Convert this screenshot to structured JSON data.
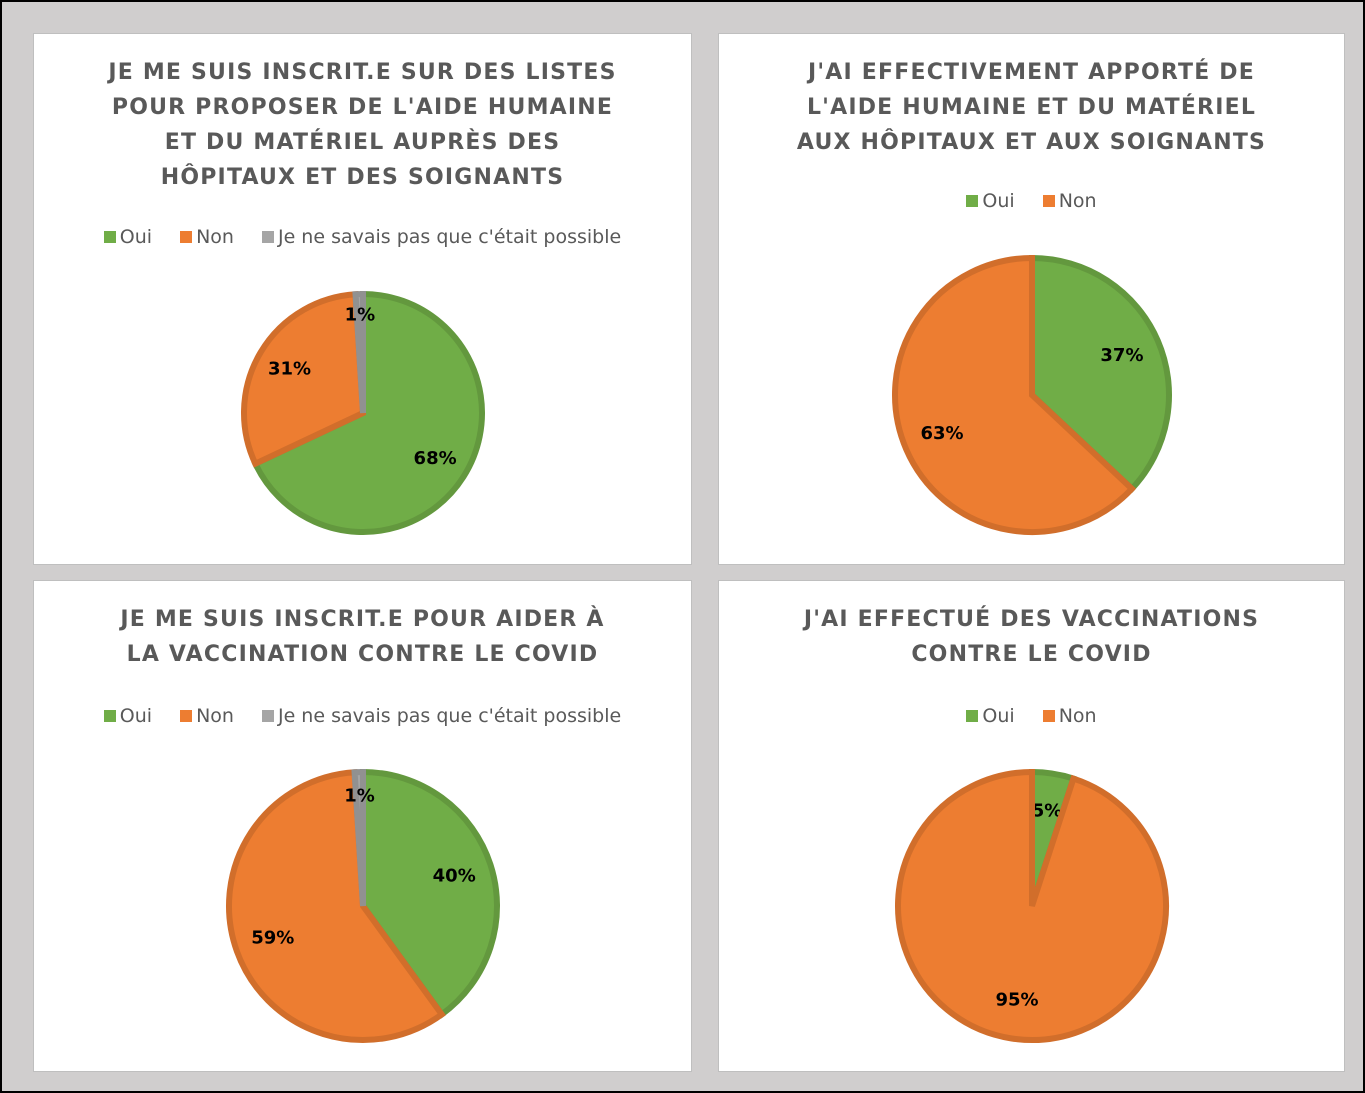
{
  "chart_data": [
    {
      "type": "pie",
      "title": [
        "JE ME SUIS INSCRIT.E SUR DES LISTES",
        "POUR PROPOSER DE L'AIDE HUMAINE",
        "ET DU MATÉRIEL AUPRÈS DES",
        "HÔPITAUX ET DES SOIGNANTS"
      ],
      "categories": [
        "Oui",
        "Non",
        "Je ne savais pas que c'était possible"
      ],
      "values": [
        68,
        31,
        1
      ],
      "value_labels": [
        "68%",
        "31%",
        "1%"
      ],
      "colors": [
        "#70ad47",
        "#ed7d31",
        "#a5a5a5"
      ],
      "legend": "top"
    },
    {
      "type": "pie",
      "title": [
        "J'AI EFFECTIVEMENT APPORTÉ DE",
        "L'AIDE HUMAINE ET DU MATÉRIEL",
        "AUX HÔPITAUX ET AUX SOIGNANTS"
      ],
      "categories": [
        "Oui",
        "Non"
      ],
      "values": [
        37,
        63
      ],
      "value_labels": [
        "37%",
        "63%"
      ],
      "colors": [
        "#70ad47",
        "#ed7d31"
      ],
      "legend": "top"
    },
    {
      "type": "pie",
      "title": [
        "JE ME SUIS INSCRIT.E POUR AIDER À",
        "LA VACCINATION CONTRE LE COVID"
      ],
      "categories": [
        "Oui",
        "Non",
        "Je ne savais pas que c'était possible"
      ],
      "values": [
        40,
        59,
        1
      ],
      "value_labels": [
        "40%",
        "59%",
        "1%"
      ],
      "colors": [
        "#70ad47",
        "#ed7d31",
        "#a5a5a5"
      ],
      "legend": "top"
    },
    {
      "type": "pie",
      "title": [
        "J'AI EFFECTUÉ DES VACCINATIONS",
        "CONTRE LE COVID"
      ],
      "categories": [
        "Oui",
        "Non"
      ],
      "values": [
        5,
        95
      ],
      "value_labels": [
        "5%",
        "95%"
      ],
      "colors": [
        "#70ad47",
        "#ed7d31"
      ],
      "legend": "top"
    }
  ]
}
